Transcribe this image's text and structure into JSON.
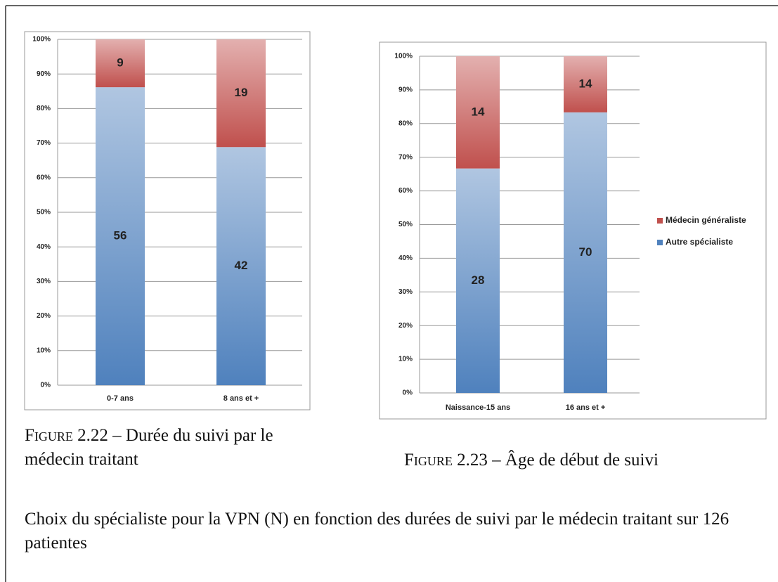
{
  "chart_data": [
    {
      "type": "stacked_percent_bar",
      "categories": [
        "0-7 ans",
        "8 ans et +"
      ],
      "series": [
        {
          "name": "Autre spécialiste",
          "color": "#4f81bd",
          "values": [
            56,
            42
          ]
        },
        {
          "name": "Médecin généraliste",
          "color": "#c0504d",
          "values": [
            9,
            19
          ]
        }
      ],
      "ylim": [
        0,
        100
      ],
      "yticks": [
        {
          "value": 0,
          "label": "0%"
        },
        {
          "value": 10,
          "label": "10%"
        },
        {
          "value": 20,
          "label": "20%"
        },
        {
          "value": 30,
          "label": "30%"
        },
        {
          "value": 40,
          "label": "40%"
        },
        {
          "value": 50,
          "label": "50%"
        },
        {
          "value": 60,
          "label": "60%"
        },
        {
          "value": 70,
          "label": "70%"
        },
        {
          "value": 80,
          "label": "80%"
        },
        {
          "value": 90,
          "label": "90%"
        },
        {
          "value": 100,
          "label": "100%"
        }
      ],
      "grid": true,
      "legend": false,
      "caption_label": "Figure 2.22",
      "caption": "– Durée du suivi par le médecin traitant"
    },
    {
      "type": "stacked_percent_bar",
      "categories": [
        "Naissance-15 ans",
        "16 ans et +"
      ],
      "series": [
        {
          "name": "Autre spécialiste",
          "color": "#4f81bd",
          "values": [
            28,
            70
          ]
        },
        {
          "name": "Médecin généraliste",
          "color": "#c0504d",
          "values": [
            14,
            14
          ]
        }
      ],
      "ylim": [
        0,
        100
      ],
      "yticks": [
        {
          "value": 0,
          "label": "0%"
        },
        {
          "value": 10,
          "label": "10%"
        },
        {
          "value": 20,
          "label": "20%"
        },
        {
          "value": 30,
          "label": "30%"
        },
        {
          "value": 40,
          "label": "40%"
        },
        {
          "value": 50,
          "label": "50%"
        },
        {
          "value": 60,
          "label": "60%"
        },
        {
          "value": 70,
          "label": "70%"
        },
        {
          "value": 80,
          "label": "80%"
        },
        {
          "value": 90,
          "label": "90%"
        },
        {
          "value": 100,
          "label": "100%"
        }
      ],
      "grid": true,
      "legend": "right",
      "caption_label": "Figure 2.23",
      "caption": "– Âge de début de suivi"
    }
  ],
  "paragraph": "Choix du spécialiste pour la VPN (N) en fonction des durées de suivi par le médecin traitant sur 126 patientes"
}
